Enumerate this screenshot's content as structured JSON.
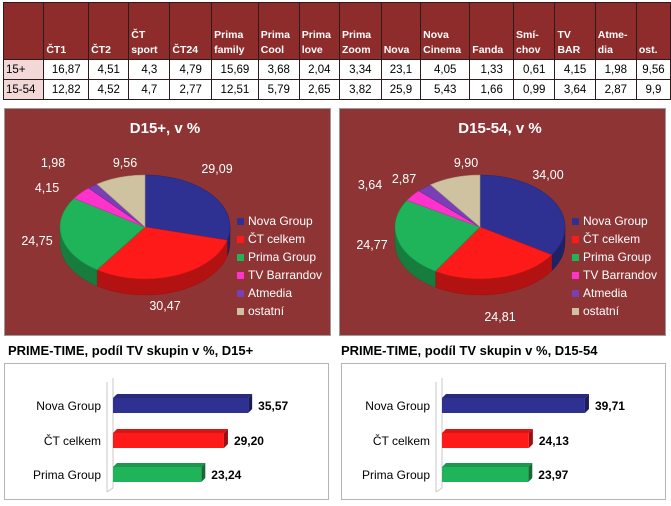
{
  "table": {
    "headers": [
      "",
      "ČT1",
      "ČT2",
      "ČT sport",
      "ČT24",
      "Prima family",
      "Prima Cool",
      "Prima love",
      "Prima Zoom",
      "Nova",
      "Nova Cinema",
      "Fanda",
      "Smí-chov",
      "TV BAR",
      "Atme-dia",
      "ost."
    ],
    "header_lines": [
      [
        ""
      ],
      [
        "ČT1"
      ],
      [
        "ČT2"
      ],
      [
        "ČT",
        "sport"
      ],
      [
        "ČT24"
      ],
      [
        "Prima",
        "family"
      ],
      [
        "Prima",
        "Cool"
      ],
      [
        "Prima",
        "love"
      ],
      [
        "Prima",
        "Zoom"
      ],
      [
        "Nova"
      ],
      [
        "Nova",
        "Cinema"
      ],
      [
        "Fanda"
      ],
      [
        "Smí-",
        "chov"
      ],
      [
        "TV",
        "BAR"
      ],
      [
        "Atme-",
        "dia"
      ],
      [
        "ost."
      ]
    ],
    "rows": [
      {
        "label": "15+",
        "values": [
          "16,87",
          "4,51",
          "4,3",
          "4,79",
          "15,69",
          "3,68",
          "2,04",
          "3,34",
          "23,1",
          "4,05",
          "1,33",
          "0,61",
          "4,15",
          "1,98",
          "9,56"
        ]
      },
      {
        "label": "15-54",
        "values": [
          "12,82",
          "4,52",
          "4,7",
          "2,77",
          "12,51",
          "5,79",
          "2,65",
          "3,82",
          "25,9",
          "5,43",
          "1,66",
          "0,99",
          "3,64",
          "2,87",
          "9,9"
        ]
      }
    ]
  },
  "colors": {
    "header_bg": "#8e2c2c",
    "panel_bg": "#8e3434",
    "row_label_bg": "#f3d8d8"
  },
  "chart_data": [
    {
      "type": "pie",
      "title": "D15+, v %",
      "legend_position": "right",
      "labels": [
        "Nova Group",
        "ČT celkem",
        "Prima Group",
        "TV Barrandov",
        "Atmedia",
        "ostatní"
      ],
      "values": [
        29.09,
        30.47,
        24.75,
        4.15,
        1.98,
        9.56
      ],
      "value_labels": [
        "29,09",
        "30,47",
        "24,75",
        "4,15",
        "1,98",
        "9,56"
      ],
      "colors": [
        "#2e3192",
        "#ff1a1a",
        "#1fb35a",
        "#ff33cc",
        "#7a3fb5",
        "#cfc2a0"
      ]
    },
    {
      "type": "pie",
      "title": "D15-54, v %",
      "legend_position": "right",
      "labels": [
        "Nova Group",
        "ČT celkem",
        "Prima Group",
        "TV Barrandov",
        "Atmedia",
        "ostatní"
      ],
      "values": [
        34.0,
        24.81,
        24.77,
        3.64,
        2.87,
        9.9
      ],
      "value_labels": [
        "34,00",
        "24,81",
        "24,77",
        "3,64",
        "2,87",
        "9,90"
      ],
      "colors": [
        "#2e3192",
        "#ff1a1a",
        "#1fb35a",
        "#ff33cc",
        "#7a3fb5",
        "#cfc2a0"
      ]
    },
    {
      "type": "bar",
      "orientation": "horizontal",
      "title": "PRIME-TIME, podíl TV skupin v %, D15+",
      "categories": [
        "Nova Group",
        "ČT celkem",
        "Prima Group"
      ],
      "values": [
        35.57,
        29.2,
        23.24
      ],
      "value_labels": [
        "35,57",
        "29,20",
        "23,24"
      ],
      "colors": [
        "#2e3192",
        "#ff1a1a",
        "#1fb35a"
      ]
    },
    {
      "type": "bar",
      "orientation": "horizontal",
      "title": "PRIME-TIME, podíl TV skupin v %, D15-54",
      "categories": [
        "Nova Group",
        "ČT celkem",
        "Prima Group"
      ],
      "values": [
        39.71,
        24.13,
        23.97
      ],
      "value_labels": [
        "39,71",
        "24,13",
        "23,97"
      ],
      "colors": [
        "#2e3192",
        "#ff1a1a",
        "#1fb35a"
      ]
    }
  ]
}
